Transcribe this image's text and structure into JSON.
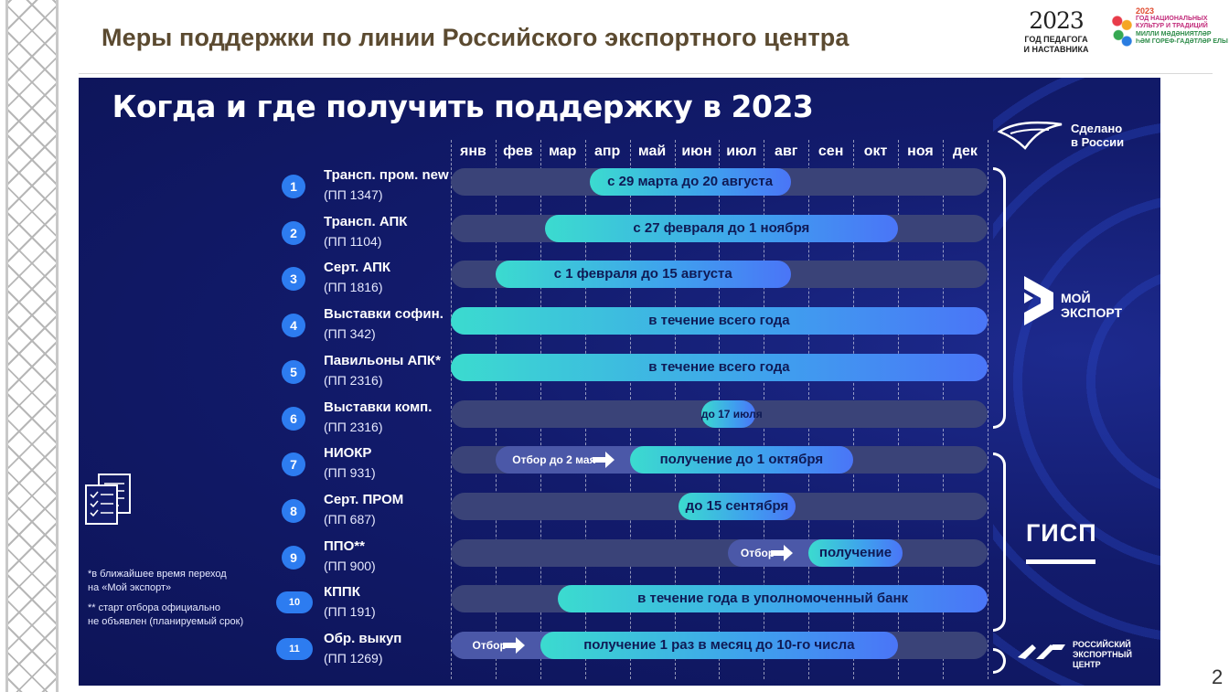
{
  "header": {
    "title": "Меры поддержки по линии Российского экспортного центра",
    "logo_year": {
      "digits": "2023",
      "caption_line1": "ГОД ПЕДАГОГА",
      "caption_line2": "И НАСТАВНИКА"
    },
    "logo_culture": {
      "line1": "2023",
      "line2": "ГОД НАЦИОНАЛЬНЫХ",
      "line3": "КУЛЬТУР И ТРАДИЦИЙ",
      "line4": "МИЛЛИ МӘДӘНИЯТЛӘР",
      "line5": "ҺӘМ ГОРЕФ-ГАДӘТЛӘР ЕЛЫ"
    }
  },
  "slide_number": "2",
  "infographic": {
    "title": "Когда и где получить поддержку в 2023",
    "months": [
      "янв",
      "фев",
      "мар",
      "апр",
      "май",
      "июн",
      "июл",
      "авг",
      "сен",
      "окт",
      "ноя",
      "дек"
    ],
    "rows": [
      {
        "num": "1",
        "name": "Трансп. пром. new",
        "sub": "(ПП 1347)",
        "start_month": 3.1,
        "end_month": 7.6,
        "label": "с 29 марта до 20 августа"
      },
      {
        "num": "2",
        "name": "Трансп. АПК",
        "sub": "(ПП 1104)",
        "start_month": 2.1,
        "end_month": 10.0,
        "label": "с 27 февраля до 1 ноября"
      },
      {
        "num": "3",
        "name": "Серт. АПК",
        "sub": "(ПП 1816)",
        "start_month": 1.0,
        "end_month": 7.6,
        "label": "с 1 февраля до 15 августа"
      },
      {
        "num": "4",
        "name": "Выставки софин.",
        "sub": "(ПП 342)",
        "start_month": 0,
        "end_month": 12,
        "label": "в течение всего года"
      },
      {
        "num": "5",
        "name": "Павильоны АПК*",
        "sub": "(ПП 2316)",
        "start_month": 0,
        "end_month": 12,
        "label": "в течение всего года"
      },
      {
        "num": "6",
        "name": "Выставки комп.",
        "sub": "(ПП 2316)",
        "start_month": 5.6,
        "end_month": 6.8,
        "label": "до 17 июля"
      },
      {
        "num": "7",
        "name": "НИОКР",
        "sub": "(ПП 931)",
        "pre_label": "Отбор до 2 мая",
        "pre_start_month": 1.0,
        "pre_end_month": 4.0,
        "start_month": 4.0,
        "end_month": 9.0,
        "label": "получение до 1 октября"
      },
      {
        "num": "8",
        "name": "Серт. ПРОМ",
        "sub": "(ПП 687)",
        "start_month": 5.1,
        "end_month": 7.7,
        "label": "до 15 сентября"
      },
      {
        "num": "9",
        "name": "ППО**",
        "sub": "(ПП 900)",
        "pre_label": "Отбор",
        "pre_start_month": 6.2,
        "pre_end_month": 8.0,
        "start_month": 8.0,
        "end_month": 10.1,
        "label": "получение"
      },
      {
        "num": "10",
        "name": "КППК",
        "sub": "(ПП 191)",
        "start_month": 2.4,
        "end_month": 12,
        "label": "в течение года в уполномоченный банк"
      },
      {
        "num": "11",
        "name": "Обр. выкуп",
        "sub": "(ПП 1269)",
        "pre_label": "Отбор",
        "pre_start_month": 0,
        "pre_end_month": 2.0,
        "start_month": 2.0,
        "end_month": 10.0,
        "label": "получение 1 раз в месяц до 10-го числа"
      }
    ],
    "footnotes": {
      "note1_line1": "*в  ближайшее время переход",
      "note1_line2": "на «Мой экспорт»",
      "note2_line1": "** старт отбора официально",
      "note2_line2": "не объявлен (планируемый срок)"
    },
    "logos": {
      "made_in_russia_line1": "Сделано",
      "made_in_russia_line2": "в России",
      "my_export_line1": "МОЙ",
      "my_export_line2": "ЭКСПОРТ",
      "gisp": "ГИСП",
      "rec_line1": "РОССИЙСКИЙ",
      "rec_line2": "ЭКСПОРТНЫЙ",
      "rec_line3": "ЦЕНТР"
    },
    "colors": {
      "panel_bg": "#121b6c",
      "track": "#3a4378",
      "bar_start": "#3bdbcf",
      "bar_end": "#4a75f7",
      "badge": "#2d7cf0"
    }
  }
}
